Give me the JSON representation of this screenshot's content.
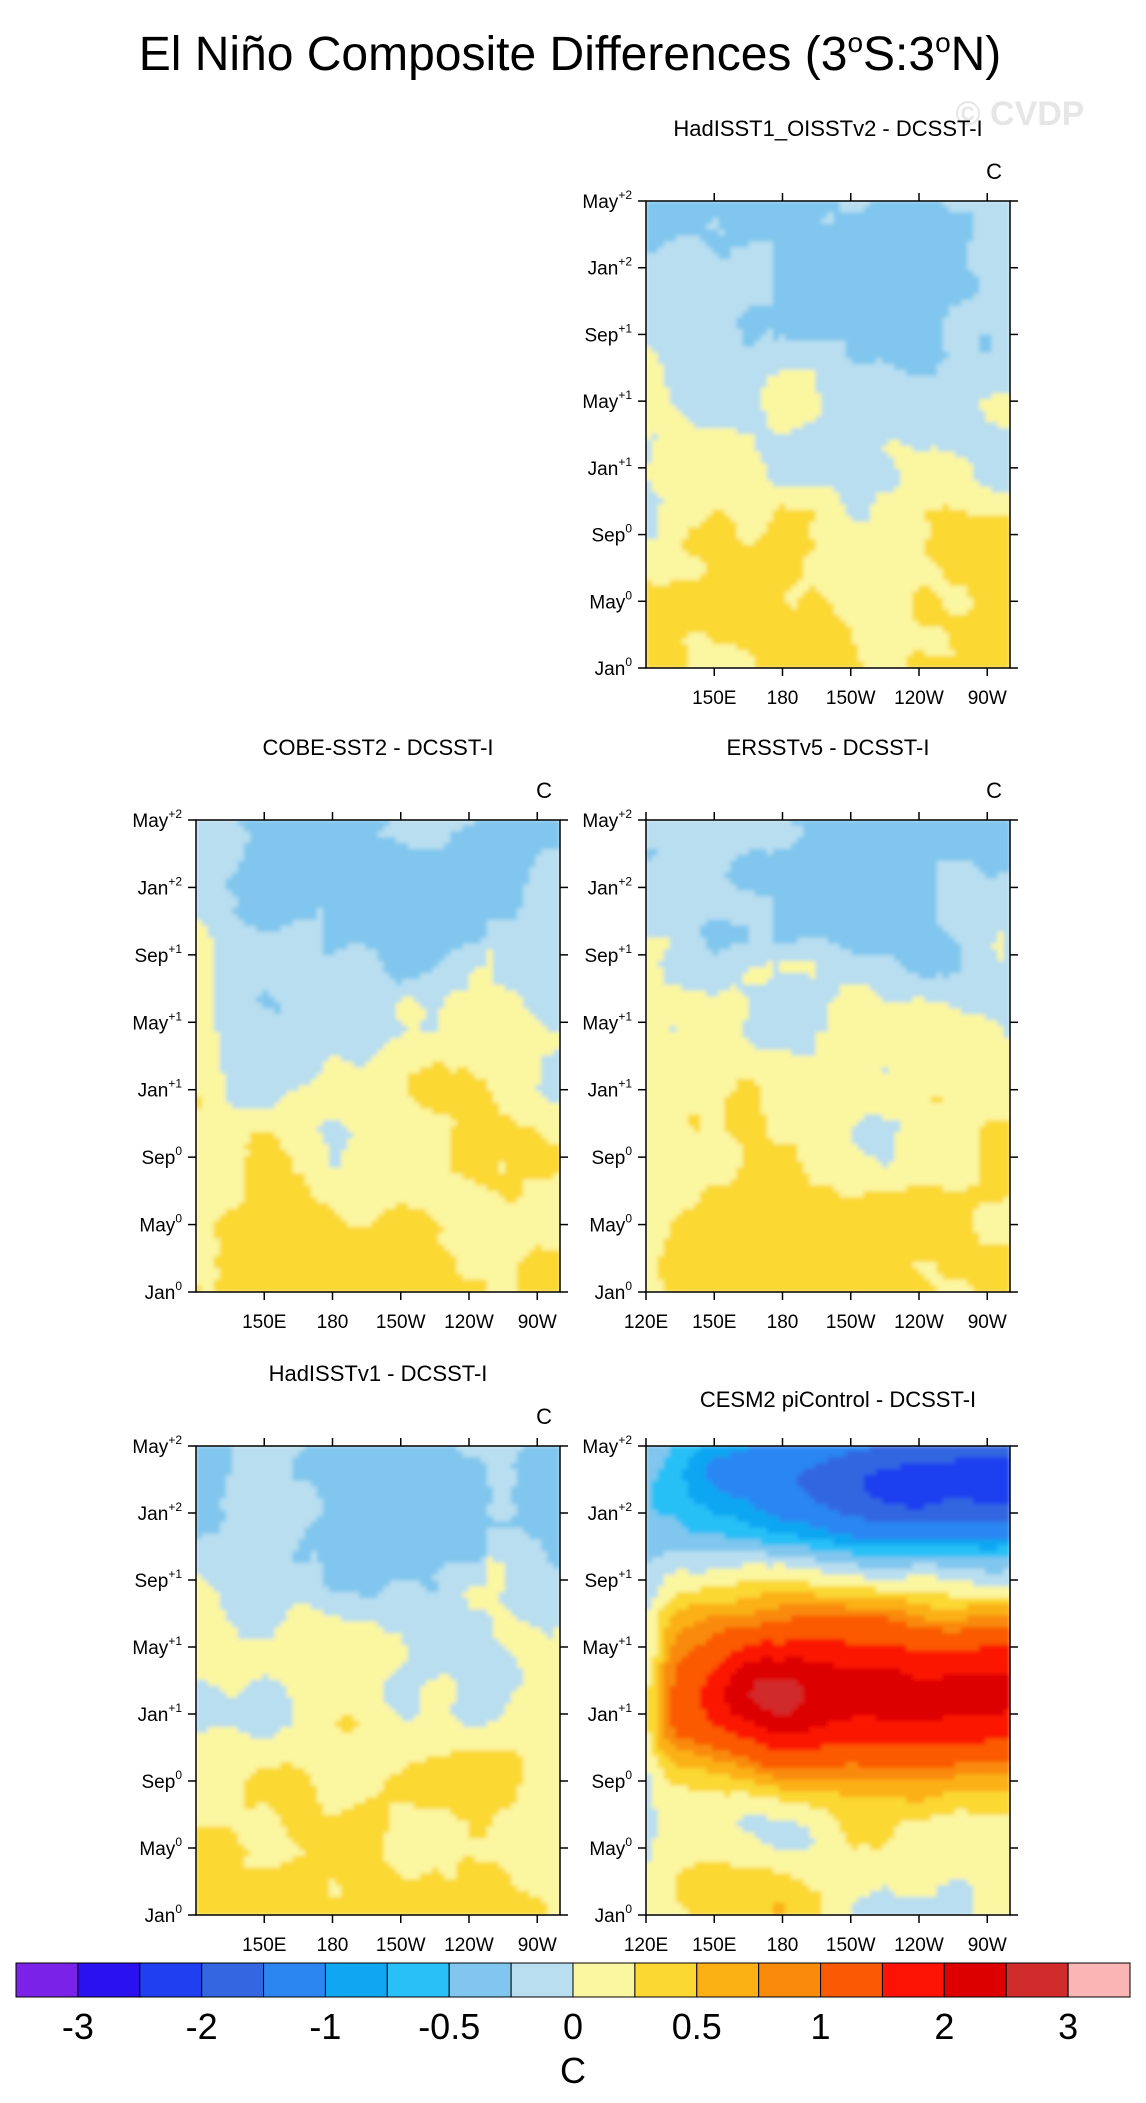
{
  "figure": {
    "title_main": "El Niño Composite Differences (3",
    "title_sup1": "o",
    "title_mid": "S:3",
    "title_sup2": "o",
    "title_end": "N)",
    "watermark": "© CVDP",
    "colorbar_unit": "C"
  },
  "chart_data": [
    {
      "type": "heatmap",
      "title": "HadISST1_OISSTv2 - DCSST-I",
      "unit": "C",
      "xticks": [
        "150E",
        "180",
        "150W",
        "120W",
        "90W"
      ],
      "yticks": [
        {
          "base": "Jan",
          "sup": "0"
        },
        {
          "base": "May",
          "sup": "0"
        },
        {
          "base": "Sep",
          "sup": "0"
        },
        {
          "base": "Jan",
          "sup": "+1"
        },
        {
          "base": "May",
          "sup": "+1"
        },
        {
          "base": "Sep",
          "sup": "+1"
        },
        {
          "base": "Jan",
          "sup": "+2"
        },
        {
          "base": "May",
          "sup": "+2"
        }
      ],
      "pattern": "mild"
    },
    {
      "type": "heatmap",
      "title": "COBE-SST2 - DCSST-I",
      "unit": "C",
      "xticks": [
        "150E",
        "180",
        "150W",
        "120W",
        "90W"
      ],
      "yticks": [
        {
          "base": "Jan",
          "sup": "0"
        },
        {
          "base": "May",
          "sup": "0"
        },
        {
          "base": "Sep",
          "sup": "0"
        },
        {
          "base": "Jan",
          "sup": "+1"
        },
        {
          "base": "May",
          "sup": "+1"
        },
        {
          "base": "Sep",
          "sup": "+1"
        },
        {
          "base": "Jan",
          "sup": "+2"
        },
        {
          "base": "May",
          "sup": "+2"
        }
      ],
      "pattern": "mild"
    },
    {
      "type": "heatmap",
      "title": "ERSSTv5 - DCSST-I",
      "unit": "C",
      "xticks": [
        "120E",
        "150E",
        "180",
        "150W",
        "120W",
        "90W"
      ],
      "yticks": [
        {
          "base": "Jan",
          "sup": "0"
        },
        {
          "base": "May",
          "sup": "0"
        },
        {
          "base": "Sep",
          "sup": "0"
        },
        {
          "base": "Jan",
          "sup": "+1"
        },
        {
          "base": "May",
          "sup": "+1"
        },
        {
          "base": "Sep",
          "sup": "+1"
        },
        {
          "base": "Jan",
          "sup": "+2"
        },
        {
          "base": "May",
          "sup": "+2"
        }
      ],
      "pattern": "mild"
    },
    {
      "type": "heatmap",
      "title": "HadISSTv1 - DCSST-I",
      "unit": "C",
      "xticks": [
        "150E",
        "180",
        "150W",
        "120W",
        "90W"
      ],
      "yticks": [
        {
          "base": "Jan",
          "sup": "0"
        },
        {
          "base": "May",
          "sup": "0"
        },
        {
          "base": "Sep",
          "sup": "0"
        },
        {
          "base": "Jan",
          "sup": "+1"
        },
        {
          "base": "May",
          "sup": "+1"
        },
        {
          "base": "Sep",
          "sup": "+1"
        },
        {
          "base": "Jan",
          "sup": "+2"
        },
        {
          "base": "May",
          "sup": "+2"
        }
      ],
      "pattern": "mild"
    },
    {
      "type": "heatmap",
      "title": "CESM2 piControl - DCSST-I",
      "unit": "",
      "xticks": [
        "120E",
        "150E",
        "180",
        "150W",
        "120W",
        "90W"
      ],
      "yticks": [
        {
          "base": "Jan",
          "sup": "0"
        },
        {
          "base": "May",
          "sup": "0"
        },
        {
          "base": "Sep",
          "sup": "0"
        },
        {
          "base": "Jan",
          "sup": "+1"
        },
        {
          "base": "May",
          "sup": "+1"
        },
        {
          "base": "Sep",
          "sup": "+1"
        },
        {
          "base": "Jan",
          "sup": "+2"
        },
        {
          "base": "May",
          "sup": "+2"
        }
      ],
      "pattern": "strong"
    }
  ],
  "colorbar": {
    "colors": [
      "#7b22e8",
      "#2a12f0",
      "#1f3ff0",
      "#3366e0",
      "#2b86f2",
      "#10a6f2",
      "#28c0f6",
      "#80c6ee",
      "#b8def0",
      "#fbf6a0",
      "#fbd832",
      "#fbb014",
      "#f98a0a",
      "#fb5a04",
      "#fb1404",
      "#dd0000",
      "#d12c2c",
      "#fbb5b5"
    ],
    "labels": [
      "-3",
      "-2",
      "-1",
      "-0.5",
      "0",
      "0.5",
      "1",
      "2",
      "3"
    ]
  }
}
